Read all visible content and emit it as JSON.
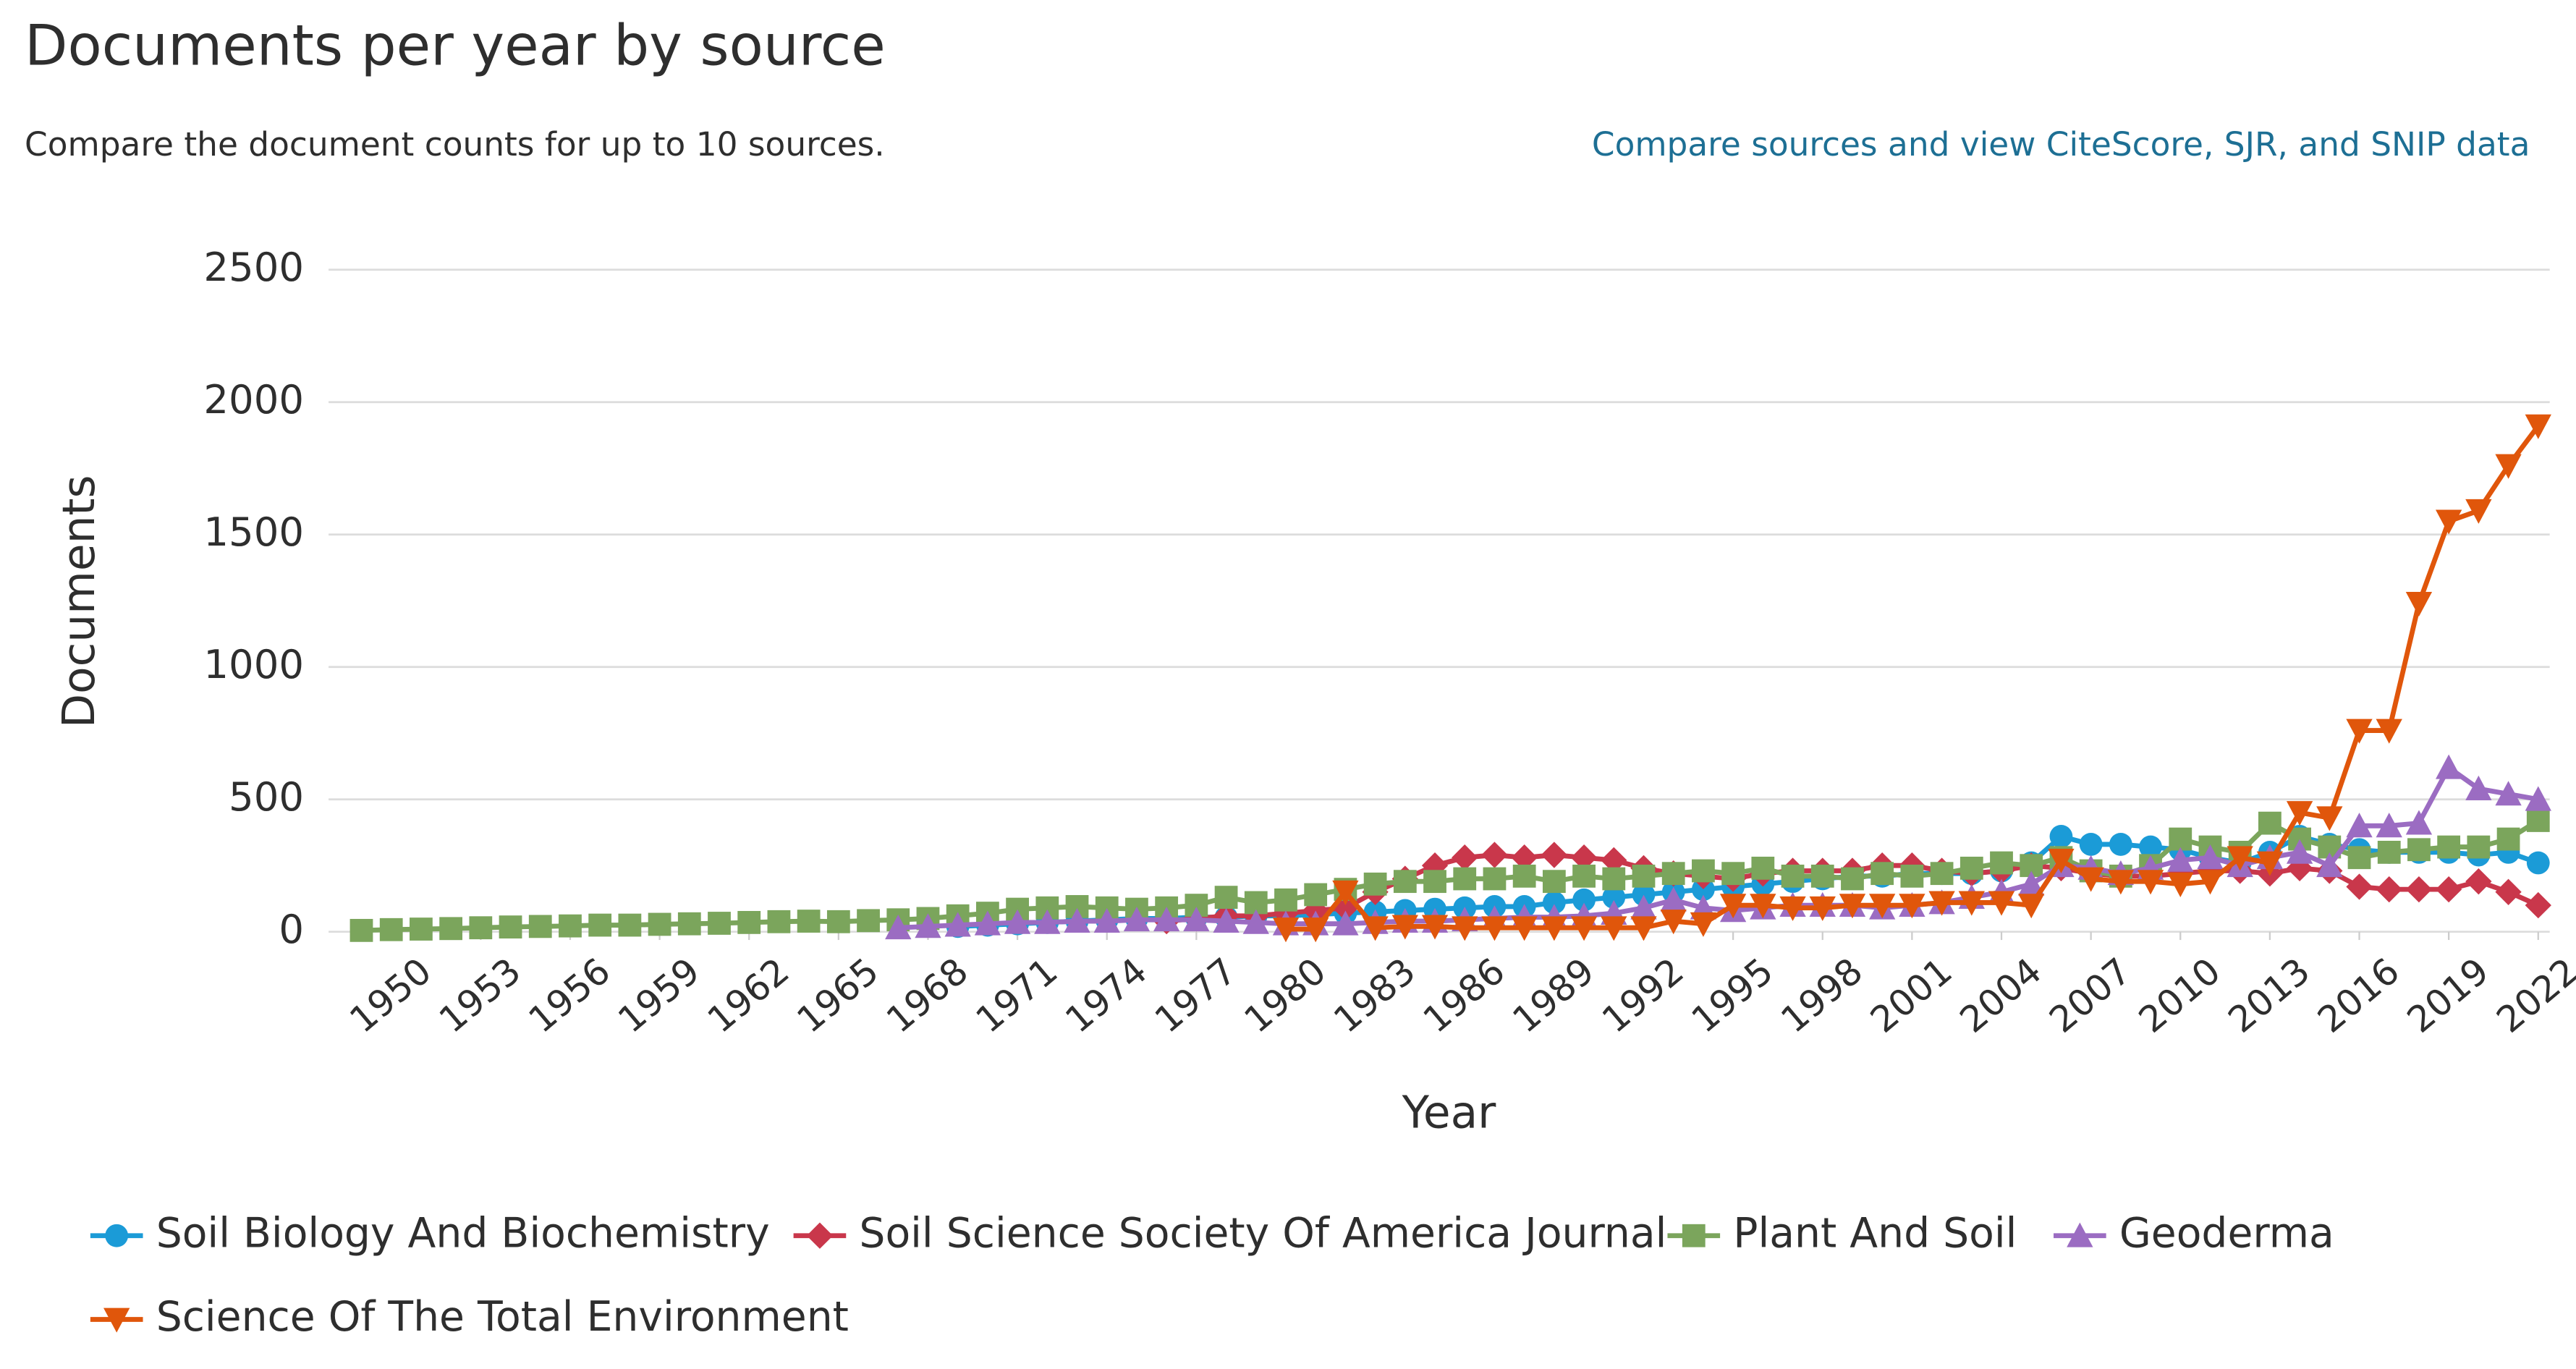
{
  "header": {
    "title": "Documents per year by source",
    "subtitle": "Compare the document counts for up to 10 sources.",
    "link": "Compare sources and view CiteScore, SJR, and SNIP data"
  },
  "chart_data": {
    "type": "line",
    "y_label": "Documents",
    "x_label": "Year",
    "x": [
      1949,
      1950,
      1951,
      1952,
      1953,
      1954,
      1955,
      1956,
      1957,
      1958,
      1959,
      1960,
      1961,
      1962,
      1963,
      1964,
      1965,
      1966,
      1967,
      1968,
      1969,
      1970,
      1971,
      1972,
      1973,
      1974,
      1975,
      1976,
      1977,
      1978,
      1979,
      1980,
      1981,
      1982,
      1983,
      1984,
      1985,
      1986,
      1987,
      1988,
      1989,
      1990,
      1991,
      1992,
      1993,
      1994,
      1995,
      1996,
      1997,
      1998,
      1999,
      2000,
      2001,
      2002,
      2003,
      2004,
      2005,
      2006,
      2007,
      2008,
      2009,
      2010,
      2011,
      2012,
      2013,
      2014,
      2015,
      2016,
      2017,
      2018,
      2019,
      2020,
      2021,
      2022
    ],
    "xlim": [
      1949,
      2022
    ],
    "xticks": [
      1950,
      1953,
      1956,
      1959,
      1962,
      1965,
      1968,
      1971,
      1974,
      1977,
      1980,
      1983,
      1986,
      1989,
      1992,
      1995,
      1998,
      2001,
      2004,
      2007,
      2010,
      2013,
      2016,
      2019,
      2022
    ],
    "ylim": [
      0,
      2500
    ],
    "yticks": [
      0,
      500,
      1000,
      1500,
      2000,
      2500
    ],
    "grid": true,
    "series": [
      {
        "name": "Soil Biology And Biochemistry",
        "color": "#1b9bd7",
        "marker": "circle",
        "values": [
          null,
          null,
          null,
          null,
          null,
          null,
          null,
          null,
          null,
          null,
          null,
          null,
          null,
          null,
          null,
          null,
          null,
          null,
          null,
          null,
          20,
          25,
          30,
          35,
          40,
          45,
          50,
          50,
          55,
          55,
          60,
          60,
          65,
          70,
          75,
          80,
          85,
          90,
          95,
          95,
          110,
          120,
          130,
          140,
          150,
          160,
          170,
          180,
          190,
          200,
          210,
          210,
          220,
          220,
          220,
          230,
          260,
          360,
          330,
          330,
          320,
          310,
          280,
          260,
          300,
          360,
          330,
          310,
          300,
          300,
          300,
          290,
          300,
          260
        ]
      },
      {
        "name": "Soil Science Society Of America Journal",
        "color": "#c9374b",
        "marker": "diamond",
        "values": [
          null,
          null,
          null,
          null,
          null,
          null,
          null,
          null,
          null,
          null,
          null,
          null,
          null,
          null,
          null,
          null,
          null,
          null,
          null,
          null,
          null,
          null,
          null,
          null,
          null,
          null,
          null,
          40,
          50,
          60,
          60,
          70,
          80,
          90,
          150,
          200,
          250,
          280,
          290,
          280,
          290,
          280,
          270,
          240,
          220,
          210,
          200,
          220,
          230,
          230,
          230,
          250,
          250,
          230,
          220,
          230,
          250,
          240,
          220,
          210,
          210,
          220,
          230,
          230,
          220,
          240,
          230,
          170,
          160,
          160,
          160,
          190,
          150,
          100
        ]
      },
      {
        "name": "Plant And Soil",
        "color": "#7ba55c",
        "marker": "square",
        "values": [
          5,
          8,
          10,
          12,
          15,
          18,
          20,
          22,
          25,
          25,
          28,
          30,
          32,
          35,
          38,
          40,
          38,
          42,
          45,
          50,
          60,
          70,
          85,
          90,
          95,
          90,
          85,
          90,
          100,
          130,
          110,
          120,
          140,
          160,
          180,
          190,
          190,
          200,
          200,
          210,
          190,
          210,
          200,
          210,
          220,
          230,
          220,
          240,
          210,
          210,
          200,
          220,
          210,
          220,
          240,
          260,
          250,
          280,
          230,
          210,
          250,
          350,
          320,
          300,
          410,
          350,
          320,
          280,
          300,
          310,
          320,
          320,
          350,
          420
        ]
      },
      {
        "name": "Geoderma",
        "color": "#9b6cc2",
        "marker": "triangle",
        "values": [
          null,
          null,
          null,
          null,
          null,
          null,
          null,
          null,
          null,
          null,
          null,
          null,
          null,
          null,
          null,
          null,
          null,
          null,
          15,
          20,
          25,
          30,
          35,
          35,
          40,
          40,
          45,
          45,
          45,
          40,
          35,
          30,
          30,
          30,
          35,
          40,
          40,
          45,
          50,
          55,
          55,
          60,
          70,
          90,
          120,
          90,
          80,
          90,
          100,
          100,
          100,
          90,
          100,
          110,
          130,
          150,
          180,
          250,
          240,
          220,
          240,
          270,
          280,
          250,
          280,
          300,
          250,
          400,
          400,
          410,
          620,
          540,
          520,
          500
        ]
      },
      {
        "name": "Science Of The Total Environment",
        "color": "#e0560b",
        "marker": "triangle-down",
        "values": [
          null,
          null,
          null,
          null,
          null,
          null,
          null,
          null,
          null,
          null,
          null,
          null,
          null,
          null,
          null,
          null,
          null,
          null,
          null,
          null,
          null,
          null,
          null,
          null,
          null,
          null,
          null,
          null,
          null,
          null,
          null,
          10,
          10,
          150,
          15,
          20,
          20,
          15,
          15,
          15,
          15,
          15,
          15,
          15,
          40,
          30,
          100,
          100,
          90,
          90,
          100,
          100,
          100,
          110,
          110,
          110,
          100,
          270,
          200,
          190,
          190,
          180,
          190,
          280,
          260,
          450,
          430,
          760,
          760,
          1240,
          1550,
          1590,
          1760,
          1910
        ]
      }
    ]
  }
}
